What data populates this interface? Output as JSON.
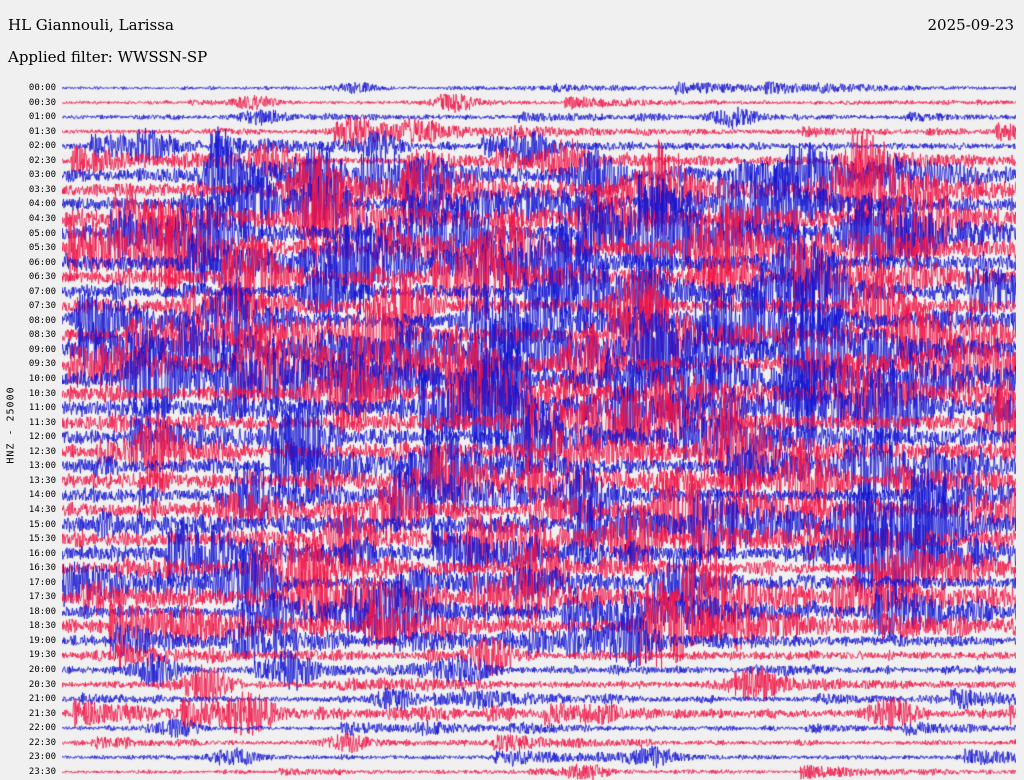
{
  "header": {
    "station_title": "HL Giannouli, Larissa",
    "date": "2025-09-23",
    "filter_label": "Applied filter: WWSSN-SP"
  },
  "axis": {
    "channel_label": "HNZ - 25000"
  },
  "colors": {
    "trace_blue": "#1414d2",
    "trace_red": "#f01446",
    "background": "#f0f0f0",
    "text": "#000000"
  },
  "chart_data": {
    "type": "line",
    "subtype": "helicorder-seismogram",
    "station": "HL Giannouli, Larissa",
    "channel": "HNZ",
    "amplitude_scale": 25000,
    "filter": "WWSSN-SP",
    "date": "2025-09-23",
    "minutes_per_row": 30,
    "rows": [
      {
        "time": "00:00",
        "color": "blue",
        "activity": 0.1,
        "bursts": [
          0.31
        ]
      },
      {
        "time": "00:30",
        "color": "red",
        "activity": 0.12,
        "bursts": [
          0.2,
          0.41
        ]
      },
      {
        "time": "01:00",
        "color": "blue",
        "activity": 0.14,
        "bursts": [
          0.21,
          0.7
        ]
      },
      {
        "time": "01:30",
        "color": "red",
        "activity": 0.18,
        "bursts": [
          0.31,
          0.37
        ]
      },
      {
        "time": "02:00",
        "color": "blue",
        "activity": 0.24,
        "bursts": [
          0.09,
          0.33,
          0.49
        ]
      },
      {
        "time": "02:30",
        "color": "red",
        "activity": 0.28,
        "bursts": [
          0.22,
          0.53,
          0.84
        ]
      },
      {
        "time": "03:00",
        "color": "blue",
        "activity": 0.42,
        "bursts": [
          0.17,
          0.27,
          0.56,
          0.78
        ]
      },
      {
        "time": "03:30",
        "color": "red",
        "activity": 0.5,
        "bursts": [
          0.26,
          0.63,
          0.82
        ]
      },
      {
        "time": "04:00",
        "color": "blue",
        "activity": 0.55,
        "bursts": [
          0.2,
          0.27,
          0.75
        ]
      },
      {
        "time": "04:30",
        "color": "red",
        "activity": 0.6,
        "bursts": [
          0.27,
          0.57,
          0.9
        ]
      },
      {
        "time": "05:00",
        "color": "blue",
        "activity": 0.65,
        "bursts": [
          0.15,
          0.42,
          0.62,
          0.85
        ]
      },
      {
        "time": "05:30",
        "color": "red",
        "activity": 0.62,
        "bursts": [
          0.11,
          0.47,
          0.68
        ]
      },
      {
        "time": "06:00",
        "color": "blue",
        "activity": 0.58,
        "bursts": [
          0.3,
          0.52,
          0.77
        ]
      },
      {
        "time": "06:30",
        "color": "red",
        "activity": 0.56,
        "bursts": [
          0.2,
          0.44,
          0.7
        ]
      },
      {
        "time": "07:00",
        "color": "blue",
        "activity": 0.52,
        "bursts": [
          0.28,
          0.55,
          0.8
        ]
      },
      {
        "time": "07:30",
        "color": "red",
        "activity": 0.56,
        "bursts": [
          0.36,
          0.6,
          0.86
        ]
      },
      {
        "time": "08:00",
        "color": "blue",
        "activity": 0.56,
        "bursts": [
          0.18,
          0.45,
          0.73
        ]
      },
      {
        "time": "08:30",
        "color": "red",
        "activity": 0.56,
        "bursts": [
          0.33,
          0.62
        ]
      },
      {
        "time": "09:00",
        "color": "blue",
        "activity": 0.7,
        "bursts": [
          0.62,
          0.68,
          0.78
        ]
      },
      {
        "time": "09:30",
        "color": "red",
        "activity": 0.6,
        "bursts": [
          0.42,
          0.55
        ]
      },
      {
        "time": "10:00",
        "color": "blue",
        "activity": 0.6,
        "bursts": [
          0.09,
          0.46
        ]
      },
      {
        "time": "10:30",
        "color": "red",
        "activity": 0.6,
        "bursts": [
          0.3,
          0.83
        ]
      },
      {
        "time": "11:00",
        "color": "blue",
        "activity": 0.68,
        "bursts": [
          0.45,
          0.87
        ]
      },
      {
        "time": "11:30",
        "color": "red",
        "activity": 0.62,
        "bursts": [
          0.62
        ]
      },
      {
        "time": "12:00",
        "color": "blue",
        "activity": 0.6,
        "bursts": [
          0.25,
          0.5
        ]
      },
      {
        "time": "12:30",
        "color": "red",
        "activity": 0.58,
        "bursts": [
          0.1,
          0.7
        ]
      },
      {
        "time": "13:00",
        "color": "blue",
        "activity": 0.58,
        "bursts": [
          0.4,
          0.85
        ]
      },
      {
        "time": "13:30",
        "color": "red",
        "activity": 0.58,
        "bursts": [
          0.78
        ]
      },
      {
        "time": "14:00",
        "color": "blue",
        "activity": 0.55,
        "bursts": [
          0.2,
          0.55
        ]
      },
      {
        "time": "14:30",
        "color": "red",
        "activity": 0.55,
        "bursts": [
          0.35,
          0.65
        ]
      },
      {
        "time": "15:00",
        "color": "blue",
        "activity": 0.64,
        "bursts": [
          0.84,
          0.9
        ]
      },
      {
        "time": "15:30",
        "color": "red",
        "activity": 0.58,
        "bursts": [
          0.3,
          0.6
        ]
      },
      {
        "time": "16:00",
        "color": "blue",
        "activity": 0.58,
        "bursts": [
          0.88
        ]
      },
      {
        "time": "16:30",
        "color": "red",
        "activity": 0.46,
        "bursts": [
          0.25,
          0.5
        ]
      },
      {
        "time": "17:00",
        "color": "blue",
        "activity": 0.46,
        "bursts": [
          0.2,
          0.65
        ]
      },
      {
        "time": "17:30",
        "color": "red",
        "activity": 0.52,
        "bursts": [
          0.27,
          0.68
        ]
      },
      {
        "time": "18:00",
        "color": "blue",
        "activity": 0.46,
        "bursts": [
          0.35
        ]
      },
      {
        "time": "18:30",
        "color": "red",
        "activity": 0.46,
        "bursts": [
          0.63
        ]
      },
      {
        "time": "19:00",
        "color": "blue",
        "activity": 0.36,
        "bursts": [
          0.2,
          0.6
        ]
      },
      {
        "time": "19:30",
        "color": "red",
        "activity": 0.3,
        "bursts": [
          0.45
        ]
      },
      {
        "time": "20:00",
        "color": "blue",
        "activity": 0.26,
        "bursts": [
          0.1,
          0.24,
          0.42
        ]
      },
      {
        "time": "20:30",
        "color": "red",
        "activity": 0.26,
        "bursts": [
          0.15,
          0.72
        ]
      },
      {
        "time": "21:00",
        "color": "blue",
        "activity": 0.2,
        "bursts": [
          0.35
        ]
      },
      {
        "time": "21:30",
        "color": "red",
        "activity": 0.3,
        "bursts": [
          0.2,
          0.87
        ]
      },
      {
        "time": "22:00",
        "color": "blue",
        "activity": 0.15,
        "bursts": [
          0.12
        ]
      },
      {
        "time": "22:30",
        "color": "red",
        "activity": 0.15,
        "bursts": [
          0.3
        ]
      },
      {
        "time": "23:00",
        "color": "blue",
        "activity": 0.15,
        "bursts": [
          0.18,
          0.62
        ]
      },
      {
        "time": "23:30",
        "color": "red",
        "activity": 0.12,
        "bursts": [
          0.55
        ]
      }
    ]
  }
}
